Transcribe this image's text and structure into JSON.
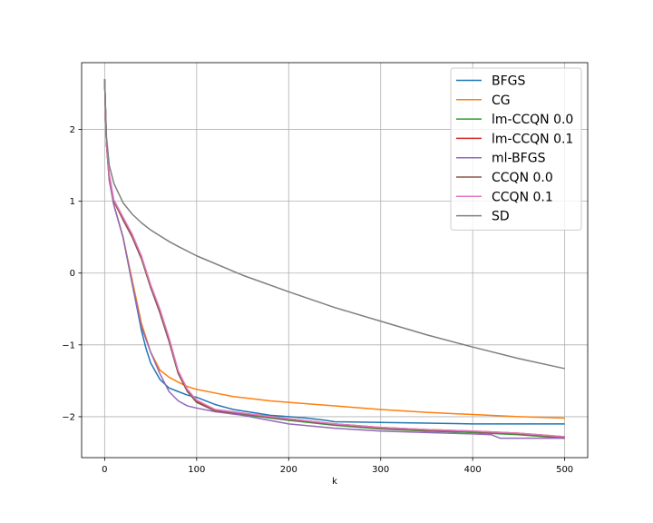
{
  "chart_data": {
    "type": "line",
    "title": "",
    "xlabel": "k",
    "ylabel": "",
    "xlim": [
      -25,
      525
    ],
    "ylim": [
      -2.57,
      2.93
    ],
    "xticks": [
      0,
      100,
      200,
      300,
      400,
      500
    ],
    "yticks": [
      -2,
      -1,
      0,
      1,
      2
    ],
    "xtick_labels": [
      "0",
      "100",
      "200",
      "300",
      "400",
      "500"
    ],
    "ytick_labels": [
      "−2",
      "−1",
      "0",
      "1",
      "2"
    ],
    "grid": true,
    "legend_position": "top-right",
    "series": [
      {
        "name": "BFGS",
        "color": "#1f77b4",
        "x": [
          0,
          2,
          5,
          10,
          20,
          30,
          40,
          45,
          50,
          60,
          70,
          80,
          90,
          100,
          120,
          140,
          160,
          180,
          200,
          220,
          240,
          250,
          300,
          350,
          400,
          450,
          500
        ],
        "y": [
          2.7,
          1.8,
          1.3,
          0.95,
          0.5,
          -0.15,
          -0.8,
          -1.05,
          -1.25,
          -1.48,
          -1.6,
          -1.65,
          -1.7,
          -1.73,
          -1.83,
          -1.9,
          -1.94,
          -1.98,
          -2.0,
          -2.02,
          -2.05,
          -2.07,
          -2.08,
          -2.09,
          -2.1,
          -2.1,
          -2.1
        ]
      },
      {
        "name": "CG",
        "color": "#ff7f0e",
        "x": [
          0,
          2,
          5,
          10,
          20,
          30,
          40,
          50,
          60,
          70,
          80,
          90,
          100,
          120,
          140,
          160,
          180,
          200,
          250,
          300,
          350,
          400,
          450,
          500
        ],
        "y": [
          2.7,
          1.8,
          1.3,
          0.95,
          0.5,
          -0.1,
          -0.7,
          -1.1,
          -1.35,
          -1.45,
          -1.52,
          -1.58,
          -1.62,
          -1.67,
          -1.72,
          -1.75,
          -1.78,
          -1.8,
          -1.85,
          -1.9,
          -1.94,
          -1.97,
          -2.0,
          -2.02
        ]
      },
      {
        "name": "lm-CCQN 0.0",
        "color": "#2ca02c",
        "x": [
          0,
          2,
          5,
          10,
          20,
          30,
          40,
          50,
          60,
          70,
          80,
          90,
          100,
          120,
          150,
          200,
          250,
          300,
          350,
          400,
          450,
          500
        ],
        "y": [
          2.7,
          1.8,
          1.35,
          1.0,
          0.75,
          0.5,
          0.2,
          -0.2,
          -0.55,
          -0.95,
          -1.4,
          -1.65,
          -1.8,
          -1.92,
          -1.97,
          -2.05,
          -2.12,
          -2.17,
          -2.2,
          -2.22,
          -2.25,
          -2.3
        ]
      },
      {
        "name": "lm-CCQN 0.1",
        "color": "#d62728",
        "x": [
          0,
          2,
          5,
          10,
          20,
          30,
          40,
          50,
          60,
          70,
          80,
          90,
          100,
          120,
          150,
          200,
          250,
          300,
          350,
          400,
          450,
          500
        ],
        "y": [
          2.7,
          1.82,
          1.36,
          1.0,
          0.76,
          0.52,
          0.22,
          -0.18,
          -0.53,
          -0.92,
          -1.38,
          -1.63,
          -1.78,
          -1.9,
          -1.95,
          -2.03,
          -2.1,
          -2.15,
          -2.18,
          -2.2,
          -2.23,
          -2.28
        ]
      },
      {
        "name": "ml-BFGS",
        "color": "#9467bd",
        "x": [
          0,
          2,
          5,
          10,
          20,
          30,
          40,
          50,
          60,
          70,
          80,
          90,
          100,
          120,
          150,
          200,
          250,
          300,
          350,
          400,
          420,
          430,
          450,
          500
        ],
        "y": [
          2.7,
          1.8,
          1.3,
          0.95,
          0.5,
          -0.15,
          -0.75,
          -1.1,
          -1.4,
          -1.65,
          -1.78,
          -1.85,
          -1.88,
          -1.93,
          -1.98,
          -2.1,
          -2.16,
          -2.2,
          -2.22,
          -2.24,
          -2.25,
          -2.3,
          -2.3,
          -2.3
        ]
      },
      {
        "name": "CCQN 0.0",
        "color": "#8c564b",
        "x": [
          0,
          2,
          5,
          10,
          20,
          30,
          40,
          50,
          60,
          70,
          80,
          90,
          100,
          120,
          150,
          200,
          250,
          300,
          350,
          400,
          450,
          500
        ],
        "y": [
          2.7,
          1.8,
          1.35,
          1.0,
          0.74,
          0.5,
          0.2,
          -0.2,
          -0.55,
          -0.95,
          -1.4,
          -1.65,
          -1.8,
          -1.92,
          -1.96,
          -2.04,
          -2.11,
          -2.16,
          -2.19,
          -2.21,
          -2.24,
          -2.29
        ]
      },
      {
        "name": "CCQN 0.1",
        "color": "#e377c2",
        "x": [
          0,
          2,
          5,
          10,
          20,
          30,
          40,
          50,
          60,
          70,
          80,
          90,
          100,
          120,
          150,
          200,
          250,
          300,
          350,
          400,
          450,
          500
        ],
        "y": [
          2.7,
          1.82,
          1.38,
          1.02,
          0.78,
          0.54,
          0.24,
          -0.16,
          -0.5,
          -0.9,
          -1.36,
          -1.62,
          -1.77,
          -1.9,
          -1.95,
          -2.03,
          -2.1,
          -2.15,
          -2.18,
          -2.2,
          -2.23,
          -2.28
        ]
      },
      {
        "name": "SD",
        "color": "#7f7f7f",
        "x": [
          0,
          2,
          5,
          10,
          20,
          30,
          40,
          50,
          60,
          70,
          80,
          100,
          150,
          200,
          250,
          300,
          350,
          400,
          450,
          500
        ],
        "y": [
          2.7,
          1.9,
          1.5,
          1.25,
          0.98,
          0.82,
          0.7,
          0.6,
          0.52,
          0.44,
          0.37,
          0.24,
          -0.03,
          -0.26,
          -0.48,
          -0.67,
          -0.86,
          -1.03,
          -1.19,
          -1.33
        ]
      }
    ]
  }
}
